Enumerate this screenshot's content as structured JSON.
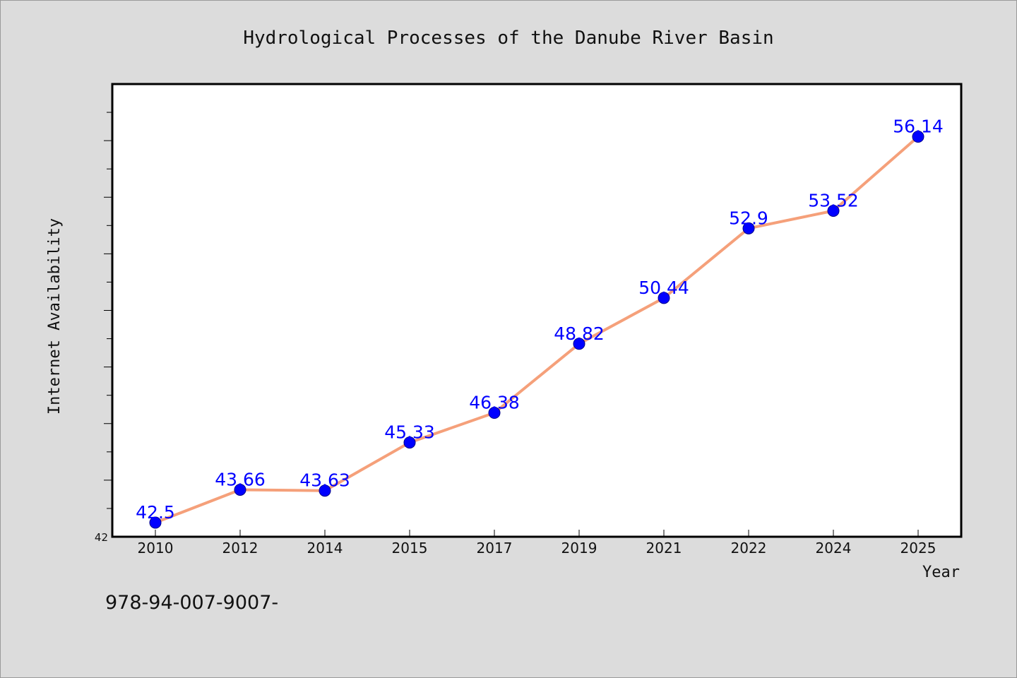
{
  "chart_data": {
    "type": "line",
    "title": "Hydrological Processes of the Danube River Basin",
    "xlabel": "Year",
    "ylabel": "Internet Availability",
    "categories": [
      "2010",
      "2012",
      "2014",
      "2015",
      "2017",
      "2019",
      "2021",
      "2022",
      "2024",
      "2025"
    ],
    "series": [
      {
        "values": [
          42.5,
          43.66,
          43.63,
          45.33,
          46.38,
          48.82,
          50.44,
          52.9,
          53.52,
          56.14
        ],
        "labels": [
          "42.5",
          "43.66",
          "43.63",
          "45.33",
          "46.38",
          "48.82",
          "50.44",
          "52.9",
          "53.52",
          "56.14"
        ]
      }
    ],
    "ylim": [
      42,
      58
    ],
    "y_tick_labels": [
      "42"
    ],
    "grid": false,
    "legend": "none"
  },
  "footer": {
    "text": "978-94-007-9007-"
  },
  "colors": {
    "background": "#dcdcdc",
    "plot_background": "#ffffff",
    "line": "#f5a07a",
    "marker": "#0000ff",
    "data_label": "#0000ff"
  }
}
